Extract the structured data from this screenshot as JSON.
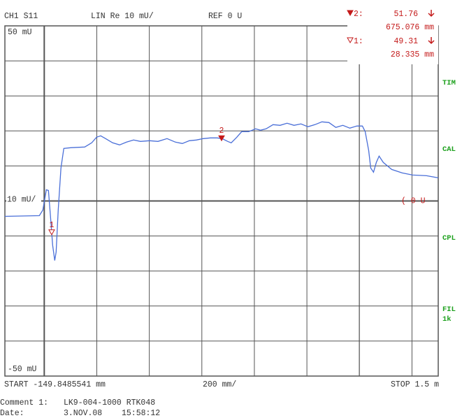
{
  "chart_data": {
    "type": "line",
    "header": {
      "channel": "CH1  S11",
      "format": "LIN  Re  10 mU/",
      "reference": "REF 0 U"
    },
    "xlim": [
      -149.8485541,
      1500
    ],
    "ylim": [
      -50,
      50
    ],
    "xticks": [
      0,
      200,
      400,
      600,
      800,
      1000,
      1200,
      1400
    ],
    "yticks": [
      {
        "value": 50,
        "label": "50 mU"
      },
      40,
      30,
      20,
      10,
      0,
      -10,
      -20,
      -30,
      -40,
      {
        "value": -50,
        "label": "-50 mU"
      }
    ],
    "grid": true,
    "ref_scale_label": "10 mU/",
    "ref_marker_label": "( 0 U",
    "series": [
      {
        "color": "#4a6fd8",
        "x": [
          -149.8,
          -18.6,
          -5.3,
          8,
          15.9,
          23.9,
          31.9,
          39.8,
          45.2,
          53.1,
          63.7,
          74.4,
          100.9,
          154,
          180.6,
          199.2,
          215.1,
          233.7,
          260.3,
          286.9,
          313.4,
          340,
          366.5,
          401,
          432.9,
          467.5,
          499.3,
          525.9,
          552.5,
          579,
          605.6,
          632.1,
          658.7,
          677.3,
          698.5,
          711.8,
          733.1,
          751.7,
          778.2,
          804.8,
          823.4,
          844.6,
          871.2,
          897.7,
          924.3,
          950.9,
          977.4,
          1004,
          1030.5,
          1057.1,
          1083.7,
          1110.2,
          1136.8,
          1163.3,
          1189.9,
          1211.2,
          1221.8,
          1235.1,
          1243,
          1253.7,
          1264.3,
          1274.9,
          1290.9,
          1322.7,
          1362.6,
          1402.4,
          1455.5,
          1500
        ],
        "values": [
          -4.4,
          -4.2,
          -2.6,
          3.2,
          3,
          -4.6,
          -12.6,
          -17,
          -14.6,
          -2.6,
          9.4,
          15,
          15.2,
          15.4,
          16.6,
          18.2,
          18.6,
          17.8,
          16.6,
          16,
          16.8,
          17.4,
          17,
          17.2,
          17,
          17.8,
          16.8,
          16.4,
          17.2,
          17.4,
          17.8,
          18,
          18,
          17.8,
          17,
          16.6,
          18.2,
          19.8,
          19.8,
          20.6,
          20.2,
          20.6,
          21.8,
          21.6,
          22.2,
          21.6,
          22,
          21.2,
          21.8,
          22.6,
          22.4,
          21,
          21.6,
          20.8,
          21.4,
          21.4,
          19.8,
          14.4,
          9.4,
          8.2,
          11,
          12.8,
          11,
          9,
          8,
          7.4,
          7.2,
          6.6
        ]
      }
    ],
    "markers": [
      {
        "label": "2",
        "readout_label": "2:",
        "value": 51.76,
        "x": 675.076,
        "x_label": "675.076 mm"
      },
      {
        "label": "1",
        "readout_label": "1:",
        "value": 49.31,
        "x": 28.335,
        "x_label": "28.335 mm"
      }
    ],
    "side_labels": [
      "TIM",
      "CAL",
      "CPL",
      "FIL",
      "1k"
    ],
    "footer": {
      "start": "START  -149.8485541 mm",
      "scale": "200 mm/",
      "stop": "STOP 1.5 m"
    },
    "comment": {
      "label": "Comment 1:",
      "text": "LK9-004-1000 RTK048",
      "date_label": "Date:",
      "date": "3.NOV.08",
      "time": "15:58:12"
    }
  }
}
